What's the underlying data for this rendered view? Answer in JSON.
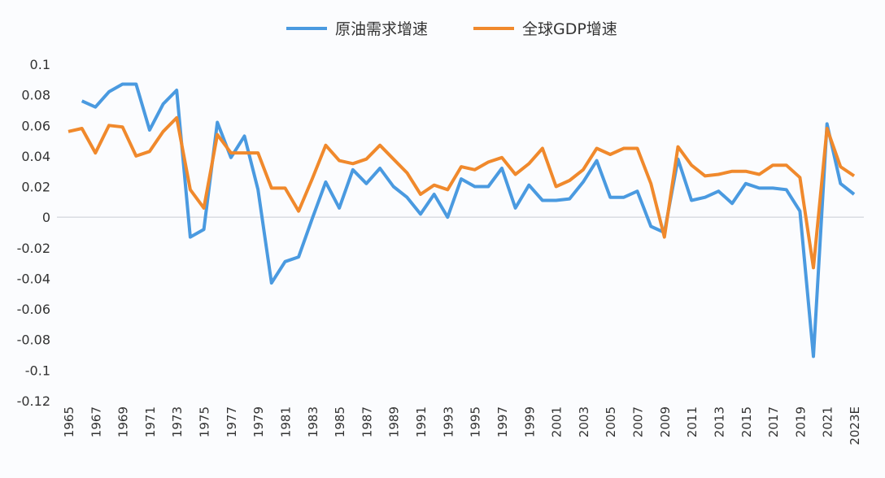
{
  "chart_data": {
    "type": "line",
    "title": "",
    "xlabel": "",
    "ylabel": "",
    "ylim": [
      -0.12,
      0.1
    ],
    "yticks": [
      "0.1",
      "0.08",
      "0.06",
      "0.04",
      "0.02",
      "0",
      "-0.02",
      "-0.04",
      "-0.06",
      "-0.08",
      "-0.1",
      "-0.12"
    ],
    "ytick_values": [
      0.1,
      0.08,
      0.06,
      0.04,
      0.02,
      0,
      -0.02,
      -0.04,
      -0.06,
      -0.08,
      -0.1,
      -0.12
    ],
    "x": [
      1965,
      1966,
      1967,
      1968,
      1969,
      1970,
      1971,
      1972,
      1973,
      1974,
      1975,
      1976,
      1977,
      1978,
      1979,
      1980,
      1981,
      1982,
      1983,
      1984,
      1985,
      1986,
      1987,
      1988,
      1989,
      1990,
      1991,
      1992,
      1993,
      1994,
      1995,
      1996,
      1997,
      1998,
      1999,
      2000,
      2001,
      2002,
      2003,
      2004,
      2005,
      2006,
      2007,
      2008,
      2009,
      2010,
      2011,
      2012,
      2013,
      2014,
      2015,
      2016,
      2017,
      2018,
      2019,
      2020,
      2021,
      2022,
      2023
    ],
    "xtick_labels": [
      "1965",
      "1967",
      "1969",
      "1971",
      "1973",
      "1975",
      "1977",
      "1979",
      "1981",
      "1983",
      "1985",
      "1987",
      "1989",
      "1991",
      "1993",
      "1995",
      "1997",
      "1999",
      "2001",
      "2003",
      "2005",
      "2007",
      "2009",
      "2011",
      "2013",
      "2015",
      "2017",
      "2019",
      "2021",
      "2023E"
    ],
    "grid": false,
    "zero_line": true,
    "legend_position": "top",
    "series": [
      {
        "name": "原油需求增速",
        "color": "#4a9ae0",
        "values": [
          null,
          0.076,
          0.072,
          0.082,
          0.087,
          0.087,
          0.057,
          0.074,
          0.083,
          -0.013,
          -0.008,
          0.062,
          0.039,
          0.053,
          0.018,
          -0.043,
          -0.029,
          -0.026,
          -0.001,
          0.023,
          0.006,
          0.031,
          0.022,
          0.032,
          0.02,
          0.013,
          0.002,
          0.015,
          0.0,
          0.025,
          0.02,
          0.02,
          0.032,
          0.006,
          0.021,
          0.011,
          0.011,
          0.012,
          0.023,
          0.037,
          0.013,
          0.013,
          0.017,
          -0.006,
          -0.01,
          0.038,
          0.011,
          0.013,
          0.017,
          0.009,
          0.022,
          0.019,
          0.019,
          0.018,
          0.004,
          -0.091,
          0.061,
          0.022,
          0.015
        ]
      },
      {
        "name": "全球GDP增速",
        "color": "#f0892c",
        "values": [
          0.056,
          0.058,
          0.042,
          0.06,
          0.059,
          0.04,
          0.043,
          0.056,
          0.065,
          0.018,
          0.006,
          0.054,
          0.042,
          0.042,
          0.042,
          0.019,
          0.019,
          0.004,
          0.025,
          0.047,
          0.037,
          0.035,
          0.038,
          0.047,
          0.038,
          0.029,
          0.015,
          0.021,
          0.018,
          0.033,
          0.031,
          0.036,
          0.039,
          0.028,
          0.035,
          0.045,
          0.02,
          0.024,
          0.031,
          0.045,
          0.041,
          0.045,
          0.045,
          0.022,
          -0.013,
          0.046,
          0.034,
          0.027,
          0.028,
          0.03,
          0.03,
          0.028,
          0.034,
          0.034,
          0.026,
          -0.033,
          0.058,
          0.033,
          0.027
        ]
      }
    ]
  }
}
